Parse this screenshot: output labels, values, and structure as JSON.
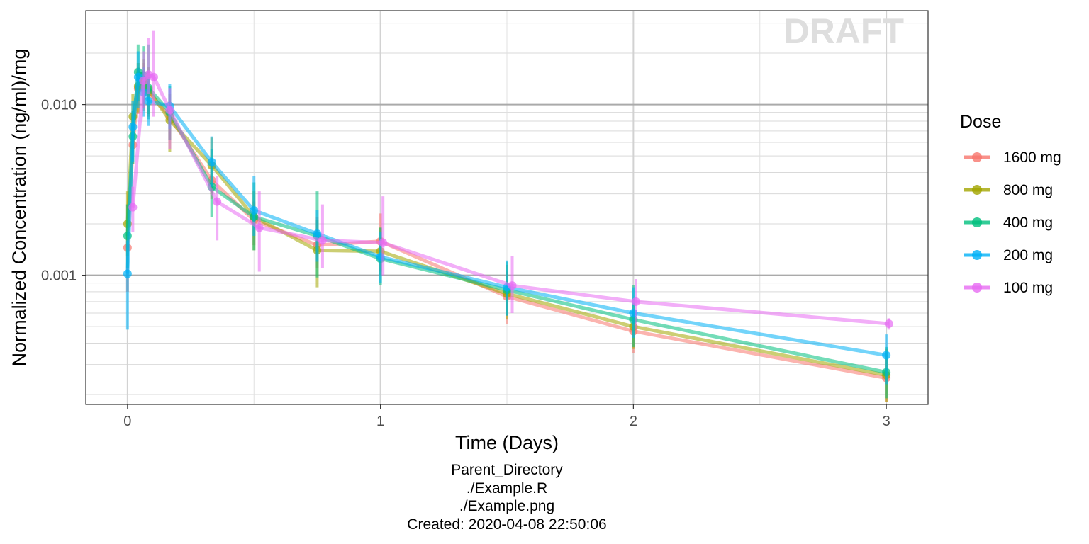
{
  "chart_data": {
    "type": "line",
    "xlabel": "Time (Days)",
    "ylabel": "Normalized Concentration (ng/ml)/mg",
    "x_ticks": [
      0,
      1,
      2,
      3
    ],
    "x_tick_labels": [
      "0",
      "1",
      "2",
      "3"
    ],
    "xlim": [
      -0.165,
      3.165
    ],
    "y_scale": "log",
    "ylim": [
      0.000175,
      0.0355
    ],
    "y_ticks": [
      0.001,
      0.01
    ],
    "y_tick_labels": [
      "0.001",
      "0.010"
    ],
    "grid": true,
    "legend_title": "Dose",
    "legend_position": "right",
    "watermark": "DRAFT",
    "series": [
      {
        "name": "1600 mg",
        "color": "#F8766D",
        "x": [
          0,
          0.021,
          0.042,
          0.063,
          0.083,
          0.167,
          0.333,
          0.5,
          0.75,
          1,
          1.5,
          2,
          3
        ],
        "y": [
          0.00145,
          0.0058,
          0.0124,
          0.0136,
          0.0118,
          0.0085,
          0.0036,
          0.0021,
          0.0015,
          0.00158,
          0.00075,
          0.00047,
          0.00025
        ],
        "err_low": [
          0.0008,
          0.0045,
          0.0088,
          0.0092,
          0.0085,
          0.0062,
          0.0028,
          0.0015,
          0.0011,
          0.00105,
          0.00052,
          0.00035,
          0.00018
        ],
        "err_high": [
          0.0026,
          0.0075,
          0.0165,
          0.0175,
          0.0155,
          0.0105,
          0.0045,
          0.0027,
          0.0022,
          0.0023,
          0.00105,
          0.0006,
          0.00034
        ]
      },
      {
        "name": "800 mg",
        "color": "#A3A500",
        "x": [
          0,
          0.021,
          0.042,
          0.063,
          0.083,
          0.167,
          0.333,
          0.5,
          0.75,
          1,
          1.5,
          2,
          3
        ],
        "y": [
          0.002,
          0.0085,
          0.0128,
          0.014,
          0.0122,
          0.0081,
          0.0044,
          0.0022,
          0.0014,
          0.00138,
          0.00078,
          0.0005,
          0.00026
        ],
        "err_low": [
          0.0013,
          0.0055,
          0.009,
          0.0095,
          0.0088,
          0.0053,
          0.003,
          0.0014,
          0.00085,
          0.001,
          0.00055,
          0.00037,
          0.00018
        ],
        "err_high": [
          0.0031,
          0.0115,
          0.0175,
          0.0185,
          0.0165,
          0.0115,
          0.0064,
          0.0031,
          0.0021,
          0.0019,
          0.00115,
          0.00068,
          0.00037
        ]
      },
      {
        "name": "400 mg",
        "color": "#00BF7D",
        "x": [
          0,
          0.021,
          0.042,
          0.063,
          0.083,
          0.167,
          0.333,
          0.5,
          0.75,
          1,
          1.5,
          2,
          3
        ],
        "y": [
          0.0017,
          0.0065,
          0.0155,
          0.0148,
          0.0125,
          0.009,
          0.0033,
          0.0022,
          0.0017,
          0.00125,
          0.00082,
          0.00055,
          0.00027
        ],
        "err_low": [
          0.0011,
          0.0045,
          0.0105,
          0.0098,
          0.0082,
          0.0062,
          0.0022,
          0.0014,
          0.00097,
          0.00088,
          0.00058,
          0.00038,
          0.00019
        ],
        "err_high": [
          0.0026,
          0.0092,
          0.0225,
          0.022,
          0.0225,
          0.0128,
          0.0055,
          0.0035,
          0.0031,
          0.0019,
          0.0012,
          0.00088,
          0.00038
        ]
      },
      {
        "name": "200 mg",
        "color": "#00B0F6",
        "x": [
          0,
          0.021,
          0.042,
          0.063,
          0.083,
          0.167,
          0.333,
          0.5,
          0.75,
          1,
          1.5,
          2,
          3
        ],
        "y": [
          0.00102,
          0.0074,
          0.0145,
          0.0118,
          0.0105,
          0.0098,
          0.0046,
          0.0024,
          0.00175,
          0.00128,
          0.00085,
          0.0006,
          0.00034
        ],
        "err_low": [
          0.00048,
          0.0046,
          0.0095,
          0.0085,
          0.0075,
          0.0072,
          0.0033,
          0.0017,
          0.0012,
          0.0009,
          0.00058,
          0.00043,
          0.00023
        ],
        "err_high": [
          0.0016,
          0.0105,
          0.0205,
          0.0165,
          0.0145,
          0.0132,
          0.0065,
          0.0038,
          0.0024,
          0.0018,
          0.00122,
          0.00085,
          0.00045
        ]
      },
      {
        "name": "100 mg",
        "color": "#E76BF3",
        "x": [
          0.021,
          0.063,
          0.083,
          0.104,
          0.167,
          0.354,
          0.521,
          0.771,
          1.01,
          1.521,
          2.01,
          3.01
        ],
        "y": [
          0.0025,
          0.0138,
          0.015,
          0.0145,
          0.0093,
          0.0027,
          0.0019,
          0.0016,
          0.00155,
          0.00087,
          0.0007,
          0.00052
        ],
        "err_low": [
          0.0018,
          0.0095,
          0.0115,
          0.0085,
          0.0055,
          0.0016,
          0.00105,
          0.0011,
          0.001,
          0.0006,
          0.00048,
          0.00048
        ],
        "err_high": [
          0.0033,
          0.0205,
          0.0245,
          0.027,
          0.0125,
          0.0038,
          0.0031,
          0.0026,
          0.0029,
          0.0013,
          0.00095,
          0.00056
        ]
      }
    ]
  },
  "caption": {
    "line1": "Parent_Directory",
    "line2": "./Example.R",
    "line3": "./Example.png",
    "line4": "Created: 2020-04-08 22:50:06"
  }
}
